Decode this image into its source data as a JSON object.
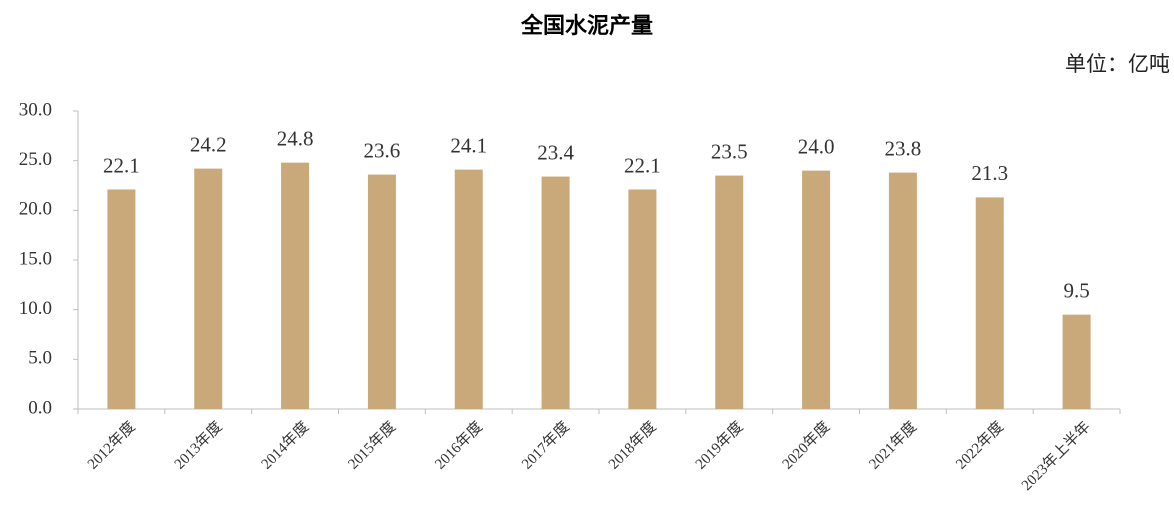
{
  "chart_data": {
    "type": "bar",
    "title": "全国水泥产量",
    "unit_label": "单位：亿吨",
    "categories": [
      "2012年度",
      "2013年度",
      "2014年度",
      "2015年度",
      "2016年度",
      "2017年度",
      "2018年度",
      "2019年度",
      "2020年度",
      "2021年度",
      "2022年度",
      "2023年上半年"
    ],
    "values": [
      22.1,
      24.2,
      24.8,
      23.6,
      24.1,
      23.4,
      22.1,
      23.5,
      24.0,
      23.8,
      21.3,
      9.5
    ],
    "value_labels": [
      "22.1",
      "24.2",
      "24.8",
      "23.6",
      "24.1",
      "23.4",
      "22.1",
      "23.5",
      "24.0",
      "23.8",
      "21.3",
      "9.5"
    ],
    "color": "#c9a97a",
    "ylim": [
      0,
      30
    ],
    "yticks": [
      {
        "value": 0,
        "label": "0.0"
      },
      {
        "value": 5,
        "label": "5.0"
      },
      {
        "value": 10,
        "label": "10.0"
      },
      {
        "value": 15,
        "label": "15.0"
      },
      {
        "value": 20,
        "label": "20.0"
      },
      {
        "value": 25,
        "label": "25.0"
      },
      {
        "value": 30,
        "label": "30.0"
      }
    ],
    "grid": false
  }
}
